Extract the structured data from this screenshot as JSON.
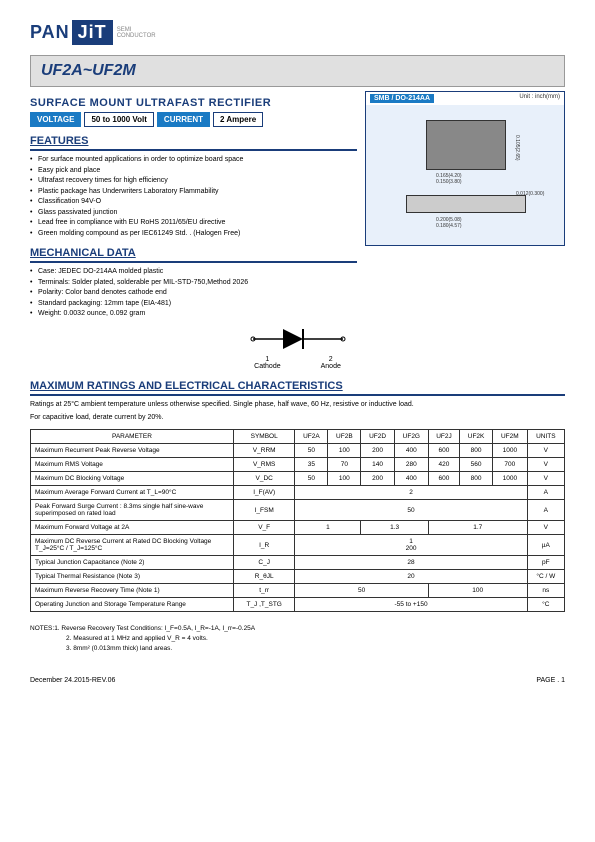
{
  "logo": {
    "pan": "PAN",
    "jit": "JiT",
    "sub1": "SEMI",
    "sub2": "CONDUCTOR"
  },
  "title": "UF2A~UF2M",
  "subtitle": "SURFACE MOUNT ULTRAFAST RECTIFIER",
  "badges": {
    "voltage_label": "VOLTAGE",
    "voltage_value": "50 to 1000 Volt",
    "current_label": "CURRENT",
    "current_value": "2 Ampere"
  },
  "package": {
    "header_left": "SMB / DO-214AA",
    "header_right": "Unit : inch(mm)",
    "dims": {
      "d1": "0.165(4.20)",
      "d2": "0.150(3.80)",
      "d3": "0.105(2.65)",
      "d4": "0.085(2.15)",
      "d5": "0.012(0.300)",
      "d6": "0.006(0.152)",
      "d7": "0.060(1.52)",
      "d8": "0.030(0.76)",
      "d9": "0.200(5.08)",
      "d10": "0.180(4.57)",
      "d11": "0.096(2.44)",
      "d12": "0.084(2.13)"
    }
  },
  "features": {
    "head": "FEATURES",
    "items": [
      "For surface mounted applications in order to optimize board space",
      "Easy pick and place",
      "Ultrafast recovery times for high efficiency",
      "Plastic package has Underwriters Laboratory Flammability",
      "Classification 94V-O",
      "Glass passivated junction",
      "Lead free in compliance with EU RoHS 2011/65/EU directive",
      "Green molding compound as per IEC61249 Std. . (Halogen Free)"
    ]
  },
  "mechanical": {
    "head": "MECHANICAL DATA",
    "items": [
      "Case: JEDEC DO-214AA molded plastic",
      "Terminals: Solder plated, solderable per MIL-STD-750,Method 2026",
      "Polarity: Color band denotes cathode end",
      "Standard packaging: 12mm tape (EIA-481)",
      "Weight: 0.0032 ounce, 0.092 gram"
    ]
  },
  "diode": {
    "cathode": "Cathode",
    "anode": "Anode",
    "pin1": "1",
    "pin2": "2"
  },
  "maxratings": {
    "head": "MAXIMUM RATINGS AND ELECTRICAL CHARACTERISTICS",
    "note1": "Ratings at 25°C ambient temperature unless otherwise specified. Single phase, half wave, 60 Hz, resistive or inductive load.",
    "note2": "For capacitive load, derate current by 20%."
  },
  "table": {
    "head": [
      "PARAMETER",
      "SYMBOL",
      "UF2A",
      "UF2B",
      "UF2D",
      "UF2G",
      "UF2J",
      "UF2K",
      "UF2M",
      "UNITS"
    ],
    "rows": [
      {
        "param": "Maximum Recurrent Peak Reverse Voltage",
        "sym": "V_RRM",
        "vals": [
          "50",
          "100",
          "200",
          "400",
          "600",
          "800",
          "1000"
        ],
        "unit": "V"
      },
      {
        "param": "Maximum RMS Voltage",
        "sym": "V_RMS",
        "vals": [
          "35",
          "70",
          "140",
          "280",
          "420",
          "560",
          "700"
        ],
        "unit": "V"
      },
      {
        "param": "Maximum DC Blocking Voltage",
        "sym": "V_DC",
        "vals": [
          "50",
          "100",
          "200",
          "400",
          "600",
          "800",
          "1000"
        ],
        "unit": "V"
      },
      {
        "param": "Maximum Average Forward Current at T_L=90°C",
        "sym": "I_F(AV)",
        "span": "2",
        "unit": "A"
      },
      {
        "param": "Peak Forward Surge Current : 8.3ms single half sine-wave superimposed on rated load",
        "sym": "I_FSM",
        "span": "50",
        "unit": "A"
      },
      {
        "param": "Maximum Forward Voltage at 2A",
        "sym": "V_F",
        "groups": [
          {
            "c": 2,
            "v": "1"
          },
          {
            "c": 2,
            "v": "1.3"
          },
          {
            "c": 3,
            "v": "1.7"
          }
        ],
        "unit": "V"
      },
      {
        "param": "Maximum DC Reverse Current at Rated DC Blocking Voltage  T_J=25°C / T_J=125°C",
        "sym": "I_R",
        "stack": [
          "1",
          "200"
        ],
        "unit": "µA"
      },
      {
        "param": "Typical Junction Capacitance (Note 2)",
        "sym": "C_J",
        "span": "28",
        "unit": "pF"
      },
      {
        "param": "Typical Thermal Resistance (Note 3)",
        "sym": "R_θJL",
        "span": "20",
        "unit": "°C / W"
      },
      {
        "param": "Maximum Reverse Recovery Time (Note 1)",
        "sym": "t_rr",
        "groups": [
          {
            "c": 4,
            "v": "50"
          },
          {
            "c": 3,
            "v": "100"
          }
        ],
        "unit": "ns"
      },
      {
        "param": "Operating Junction and Storage Temperature Range",
        "sym": "T_J ,T_STG",
        "span": "-55 to +150",
        "unit": "°C"
      }
    ]
  },
  "notes": {
    "l1": "NOTES:1. Reverse Recovery Test Conditions: I_F=0.5A, I_R=-1A, I_rr=-0.25A",
    "l2": "2. Measured at 1 MHz and applied V_R = 4 volts.",
    "l3": "3. 8mm² (0.013mm thick) land areas."
  },
  "footer": {
    "left": "December 24.2015-REV.06",
    "right": "PAGE  .  1"
  }
}
